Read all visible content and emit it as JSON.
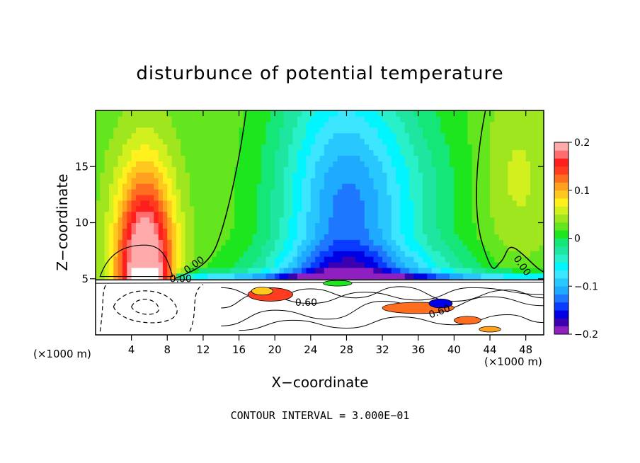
{
  "chart_data": {
    "type": "heatmap",
    "title": "disturbunce of potential temperature",
    "xlabel": "X−coordinate",
    "ylabel": "Z−coordinate",
    "x_unit": "(×1000 m)",
    "y_unit": "(×1000 m)",
    "xlim": [
      0,
      50
    ],
    "ylim": [
      0,
      20
    ],
    "xticks": [
      4,
      8,
      12,
      16,
      20,
      24,
      28,
      32,
      36,
      40,
      44,
      48
    ],
    "yticks": [
      5,
      10,
      15
    ],
    "colorbar": {
      "range": [
        -0.2,
        0.2
      ],
      "tick_values": [
        0.2,
        0.1,
        0,
        -0.1,
        -0.2
      ],
      "tick_labels": [
        "0.2",
        "0.1",
        "0",
        "−0.1",
        "−0.2"
      ],
      "colors": [
        "#8f1fbf",
        "#3b00b0",
        "#0000e6",
        "#0a3cff",
        "#1e78ff",
        "#1eaaff",
        "#28c8ff",
        "#3ce6ff",
        "#00f5ff",
        "#28f0c8",
        "#1ee6a0",
        "#14e678",
        "#1ee61e",
        "#64e61e",
        "#a0e61e",
        "#d2f01e",
        "#fff01e",
        "#ffc81e",
        "#ffa01e",
        "#ff6e1e",
        "#ff3c1e",
        "#ff1e1e",
        "#ff6e6e",
        "#ffaaaa"
      ]
    },
    "contour_labels": [
      "0.00",
      "0.00",
      "0.00",
      "0.60",
      "0.60"
    ],
    "footer": "CONTOUR INTERVAL = 3.000E−01"
  }
}
